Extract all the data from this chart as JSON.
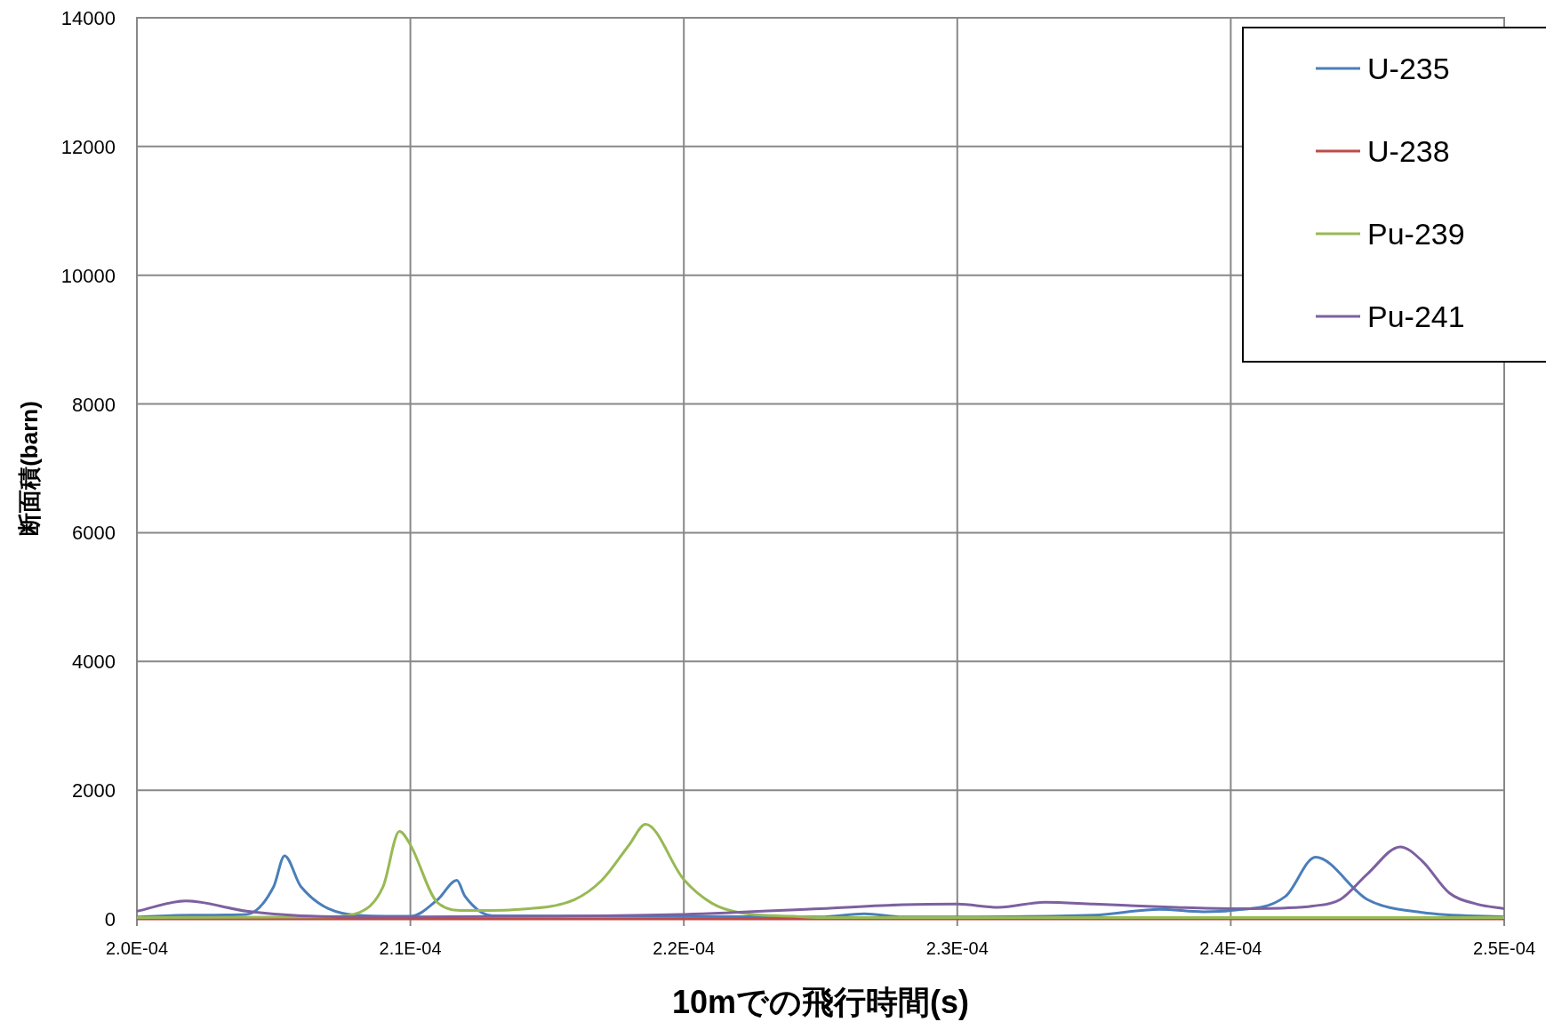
{
  "chart_data": {
    "type": "line",
    "xlabel": "10mでの飛行時間(s)",
    "ylabel": "断面積(barn)",
    "xlim": [
      0.0002,
      0.00025
    ],
    "ylim": [
      0,
      14000
    ],
    "xticks": [
      {
        "value": 0.0002,
        "label": "2.0E-04"
      },
      {
        "value": 0.00021,
        "label": "2.1E-04"
      },
      {
        "value": 0.00022,
        "label": "2.2E-04"
      },
      {
        "value": 0.00023,
        "label": "2.3E-04"
      },
      {
        "value": 0.00024,
        "label": "2.4E-04"
      },
      {
        "value": 0.00025,
        "label": "2.5E-04"
      }
    ],
    "yticks": [
      0,
      2000,
      4000,
      6000,
      8000,
      10000,
      12000,
      14000
    ],
    "grid": true,
    "legend": "top right",
    "series": [
      {
        "name": "U-235",
        "color": "#4a7ebb",
        "x": [
          0.0002,
          0.000202,
          0.000204,
          0.000205,
          0.0002054,
          0.000206,
          0.000208,
          0.00021,
          0.000211,
          0.0002117,
          0.000212,
          0.000213,
          0.000225,
          0.0002266,
          0.000228,
          0.000235,
          0.0002374,
          0.000239,
          0.00024,
          0.000242,
          0.0002431,
          0.000245,
          0.000247,
          0.00025
        ],
        "values": [
          30,
          60,
          70,
          500,
          980,
          500,
          60,
          40,
          300,
          600,
          350,
          50,
          30,
          80,
          30,
          60,
          150,
          110,
          130,
          350,
          960,
          300,
          100,
          30
        ]
      },
      {
        "name": "U-238",
        "color": "#be4b48",
        "x": [
          0.0002,
          0.00021,
          0.00022,
          0.00023,
          0.00024,
          0.00025
        ],
        "values": [
          0,
          0,
          0,
          0,
          0,
          0
        ]
      },
      {
        "name": "Pu-239",
        "color": "#98b954",
        "x": [
          0.0002,
          0.000207,
          0.000208,
          0.000209,
          0.0002096,
          0.00021,
          0.000211,
          0.000212,
          0.000214,
          0.000216,
          0.000217,
          0.000218,
          0.0002186,
          0.00022,
          0.000221,
          0.000222,
          0.000224,
          0.000225,
          0.00025
        ],
        "values": [
          20,
          30,
          80,
          500,
          1360,
          1150,
          250,
          130,
          150,
          300,
          600,
          1150,
          1470,
          610,
          250,
          100,
          40,
          20,
          20
        ]
      },
      {
        "name": "Pu-241",
        "color": "#7d60a0",
        "x": [
          0.0002,
          0.0002018,
          0.000204,
          0.000206,
          0.00021,
          0.000215,
          0.00022,
          0.000225,
          0.000228,
          0.00023,
          0.0002315,
          0.0002332,
          0.000235,
          0.000238,
          0.00024,
          0.000242,
          0.000243,
          0.000244,
          0.000245,
          0.0002462,
          0.000247,
          0.000248,
          0.000249,
          0.00025
        ],
        "values": [
          120,
          280,
          120,
          50,
          30,
          40,
          70,
          160,
          220,
          230,
          180,
          260,
          230,
          180,
          160,
          170,
          200,
          300,
          700,
          1120,
          900,
          400,
          230,
          160
        ]
      }
    ]
  }
}
